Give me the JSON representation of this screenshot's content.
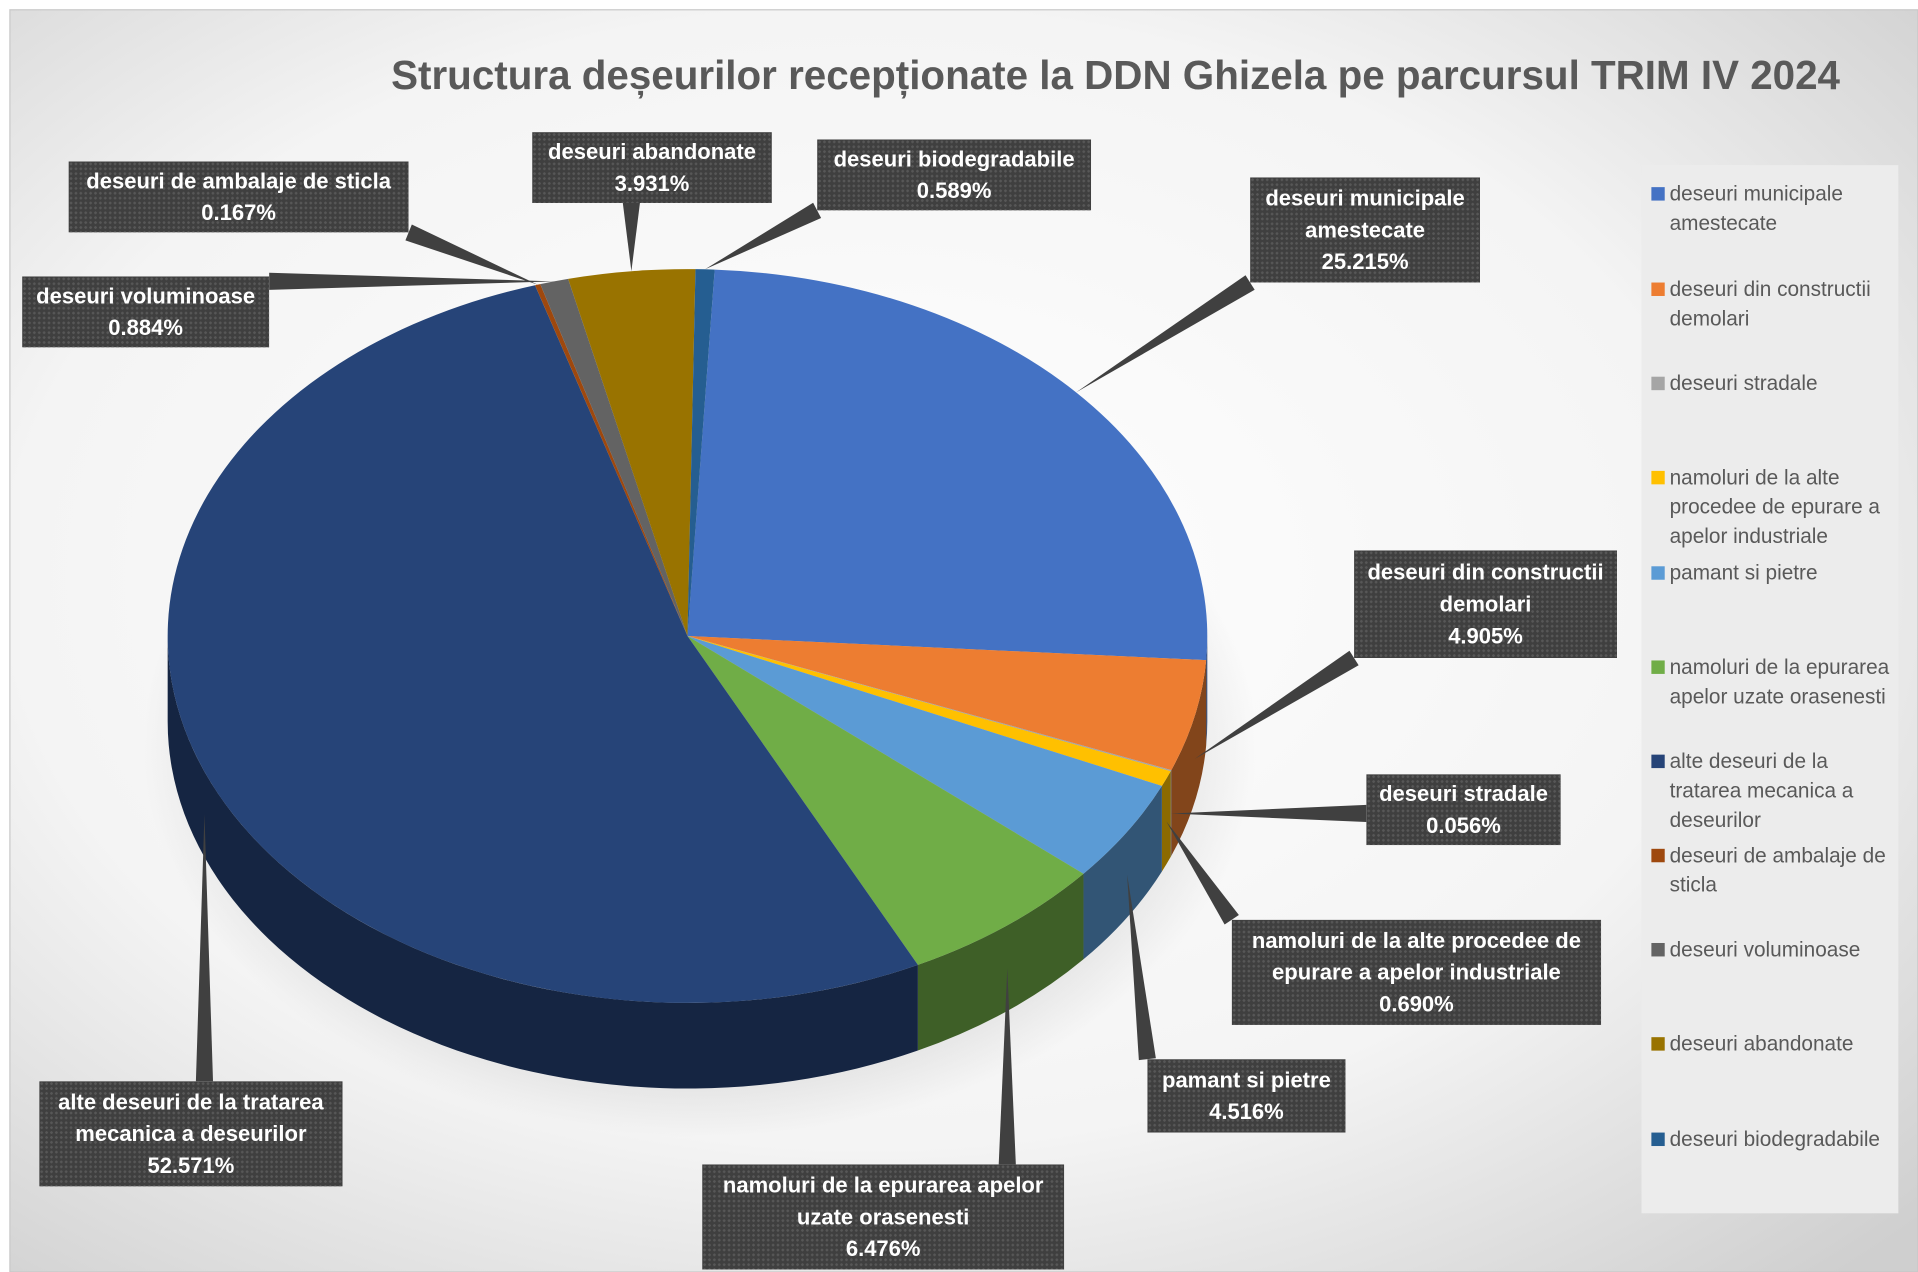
{
  "chart_data": {
    "type": "pie3d",
    "title": "Structura deșeurilor recepționate la DDN Ghizela pe parcursul TRIM IV 2024",
    "categories": [
      "deseuri municipale amestecate",
      "deseuri din constructii demolari",
      "deseuri stradale",
      "namoluri de la alte procedee de epurare a apelor industriale",
      "pamant si pietre",
      "namoluri de la epurarea apelor uzate orasenesti",
      "alte deseuri de la tratarea mecanica a deseurilor",
      "deseuri de ambalaje de sticla",
      "deseuri voluminoase",
      "deseuri abandonate",
      "deseuri biodegradabile"
    ],
    "values": [
      25.215,
      4.905,
      0.056,
      0.69,
      4.516,
      6.476,
      52.571,
      0.167,
      0.884,
      3.931,
      0.589
    ],
    "value_labels": [
      "25.215%",
      "4.905%",
      "0.056%",
      "0.690%",
      "4.516%",
      "6.476%",
      "52.571%",
      "0.167%",
      "0.884%",
      "3.931%",
      "0.589%"
    ],
    "colors": [
      "#4472c4",
      "#ed7d31",
      "#a5a5a5",
      "#ffc000",
      "#5b9bd5",
      "#70ad47",
      "#264478",
      "#9e480e",
      "#636363",
      "#997300",
      "#255e91"
    ],
    "legend": "right"
  }
}
